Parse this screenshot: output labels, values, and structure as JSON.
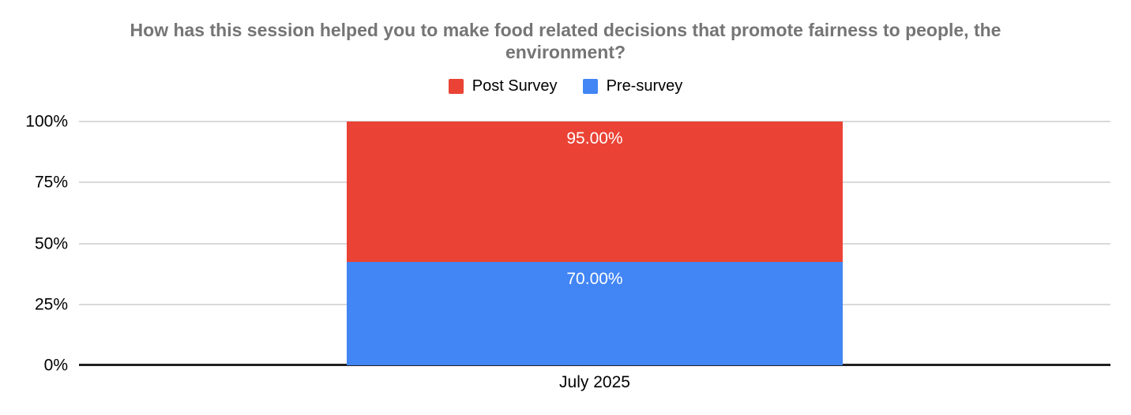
{
  "title_lines": [
    "How has this session helped you to make food related decisions that promote fairness to people, the",
    "environment?"
  ],
  "chart_data": {
    "type": "bar",
    "subtype": "100-percent-stacked-column",
    "title": "How has this session helped you to make food related decisions that promote fairness to people, the environment?",
    "categories": [
      "July 2025"
    ],
    "series": [
      {
        "name": "Post Survey",
        "color": "#EA4335",
        "values": [
          95.0
        ],
        "data_labels": [
          "95.00%"
        ],
        "stack_position": "top"
      },
      {
        "name": "Pre-survey",
        "color": "#4285F4",
        "values": [
          70.0
        ],
        "data_labels": [
          "70.00%"
        ],
        "stack_position": "bottom"
      }
    ],
    "xlabel": "",
    "ylabel": "",
    "ylim": [
      0,
      100
    ],
    "grid": true,
    "legend_position": "top"
  },
  "axis": {
    "y_ticks_top_to_bottom": [
      "100%",
      "75%",
      "50%",
      "25%",
      "0%"
    ],
    "x_tick": "July 2025"
  },
  "style": {
    "title_color": "#757575",
    "grid_color": "#d9d9d9",
    "axis_line_color": "#212121",
    "tick_label_color": "#000000",
    "data_label_color": "#ffffff",
    "background": "#ffffff"
  }
}
